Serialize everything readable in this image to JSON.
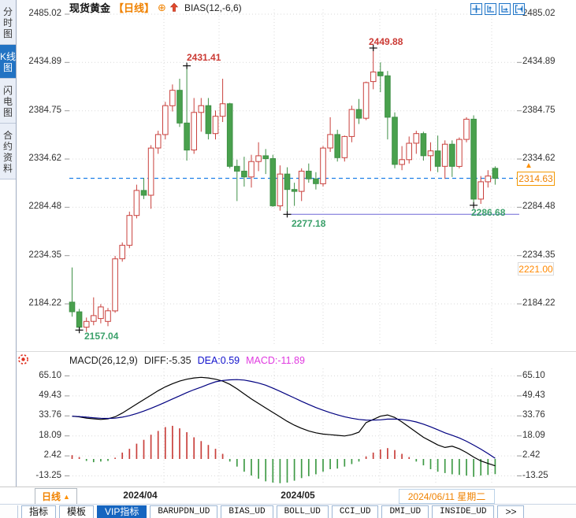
{
  "header": {
    "symbol": "现货黄金",
    "period_tag": "【日线】",
    "indicator_label": "BIAS(12,-6,6)"
  },
  "icons": {
    "circle_plus": "⊕",
    "up_triangle": "▲"
  },
  "sidebar": {
    "items": [
      {
        "label": "分时图",
        "selected": false
      },
      {
        "label": "K线图",
        "selected": true
      },
      {
        "label": "闪电图",
        "selected": false
      },
      {
        "label": "合约资料",
        "selected": false
      }
    ]
  },
  "colors": {
    "up": "#c9403c",
    "down": "#49a14d",
    "down_stroke": "#3f9046",
    "accent_orange": "#f08200",
    "current_line": "#1f7fe8",
    "support_line": "#9490e0",
    "dif_line": "#000000",
    "dea_line": "#000080",
    "hist_up": "#c9403c",
    "hist_down": "#3f9a46",
    "grid": "#d9d9d9",
    "tick": "#999999",
    "selected_blue": "#1565c0"
  },
  "macd_header": {
    "formula": "MACD(26,12,9)",
    "diff": "DIFF:-5.35",
    "dea": "DEA:0.59",
    "macd": "MACD:-11.89"
  },
  "bottom_bar": {
    "period_button": "日线"
  },
  "bottom_tabs": [
    {
      "label": "指标",
      "selected": false,
      "mono": false
    },
    {
      "label": "模板",
      "selected": false,
      "mono": false
    },
    {
      "label": "VIP指标",
      "selected": true,
      "mono": false
    },
    {
      "label": "BARUPDN_UD",
      "selected": false,
      "mono": true
    },
    {
      "label": "BIAS_UD",
      "selected": false,
      "mono": true
    },
    {
      "label": "BOLL_UD",
      "selected": false,
      "mono": true
    },
    {
      "label": "CCI_UD",
      "selected": false,
      "mono": true
    },
    {
      "label": "DMI_UD",
      "selected": false,
      "mono": true
    },
    {
      "label": "INSIDE_UD",
      "selected": false,
      "mono": true
    },
    {
      "label": ">>",
      "selected": false,
      "mono": false
    }
  ],
  "chart_data": [
    {
      "type": "candlestick",
      "title": "现货黄金 日线",
      "style": "chinese-convention-up-red-hollow-down-green-solid",
      "axis_range": [
        2184.22,
        2485.02
      ],
      "y_ticks": [
        2485.02,
        2434.89,
        2384.75,
        2334.62,
        2284.48,
        2234.35,
        2184.22
      ],
      "y_tick_labels": [
        "2485.02",
        "2434.89",
        "2384.75",
        "2334.62",
        "2284.48",
        "2234.35",
        "2184.22"
      ],
      "x_labels": [
        "2024/04",
        "2024/05",
        "2024/06/11 星期二"
      ],
      "current_price": 2314.63,
      "current_price_label": "2314.63",
      "alert_price": 2221.0,
      "alert_price_label": "2221.00",
      "support_line": {
        "price": 2277.18,
        "from_candle": 30
      },
      "annotations": [
        {
          "text": "2431.41",
          "candle": 16,
          "at": "high",
          "color": "#cb3a34"
        },
        {
          "text": "2449.88",
          "candle": 42,
          "at": "high",
          "color": "#cb3a34"
        },
        {
          "text": "2157.04",
          "candle": 1,
          "at": "low",
          "color": "#3aa06a"
        },
        {
          "text": "2277.18",
          "candle": 30,
          "at": "low",
          "color": "#3aa06a"
        },
        {
          "text": "2286.68",
          "candle": 56,
          "at": "low",
          "color": "#3aa06a"
        }
      ],
      "candles": [
        [
          2186,
          2222,
          2171,
          2176
        ],
        [
          2176,
          2179,
          2157.04,
          2160
        ],
        [
          2160,
          2170,
          2155,
          2166
        ],
        [
          2166,
          2191,
          2162,
          2172
        ],
        [
          2169,
          2184,
          2164,
          2181
        ],
        [
          2166,
          2180,
          2161,
          2177
        ],
        [
          2177,
          2234,
          2175,
          2231
        ],
        [
          2231,
          2248,
          2228,
          2245
        ],
        [
          2245,
          2280,
          2242,
          2276
        ],
        [
          2276,
          2308,
          2273,
          2302
        ],
        [
          2302,
          2315,
          2293,
          2297
        ],
        [
          2297,
          2349,
          2283,
          2346
        ],
        [
          2346,
          2364,
          2340,
          2360
        ],
        [
          2360,
          2394,
          2355,
          2390
        ],
        [
          2390,
          2412,
          2384,
          2406
        ],
        [
          2406,
          2418,
          2368,
          2372
        ],
        [
          2372,
          2431.41,
          2333,
          2344
        ],
        [
          2344,
          2398,
          2340,
          2383
        ],
        [
          2383,
          2398,
          2363,
          2390
        ],
        [
          2390,
          2398,
          2355,
          2361
        ],
        [
          2361,
          2385,
          2355,
          2379
        ],
        [
          2379,
          2418,
          2373,
          2392
        ],
        [
          2392,
          2393,
          2325,
          2327
        ],
        [
          2327,
          2334,
          2291,
          2322
        ],
        [
          2322,
          2337,
          2306,
          2316
        ],
        [
          2316,
          2339,
          2305,
          2332
        ],
        [
          2332,
          2352,
          2322,
          2338
        ],
        [
          2338,
          2345,
          2319,
          2335
        ],
        [
          2335,
          2339,
          2285,
          2286
        ],
        [
          2286,
          2328,
          2281,
          2319
        ],
        [
          2319,
          2326,
          2277.18,
          2303
        ],
        [
          2303,
          2310,
          2286,
          2301
        ],
        [
          2301,
          2325,
          2291,
          2322
        ],
        [
          2322,
          2330,
          2310,
          2314
        ],
        [
          2314,
          2321,
          2303,
          2309
        ],
        [
          2309,
          2348,
          2306,
          2346
        ],
        [
          2346,
          2378,
          2342,
          2360
        ],
        [
          2360,
          2365,
          2332,
          2336
        ],
        [
          2336,
          2359,
          2332,
          2358
        ],
        [
          2358,
          2390,
          2352,
          2386
        ],
        [
          2386,
          2397,
          2371,
          2377
        ],
        [
          2377,
          2415,
          2375,
          2414
        ],
        [
          2415,
          2449.88,
          2407,
          2425
        ],
        [
          2425,
          2435,
          2404,
          2421
        ],
        [
          2421,
          2426,
          2355,
          2378
        ],
        [
          2378,
          2383,
          2325,
          2329
        ],
        [
          2329,
          2348,
          2323,
          2334
        ],
        [
          2334,
          2358,
          2330,
          2351
        ],
        [
          2351,
          2364,
          2340,
          2361
        ],
        [
          2361,
          2363,
          2333,
          2338
        ],
        [
          2338,
          2352,
          2322,
          2343
        ],
        [
          2343,
          2359,
          2321,
          2327
        ],
        [
          2327,
          2354,
          2314,
          2350
        ],
        [
          2350,
          2354,
          2316,
          2327
        ],
        [
          2327,
          2357,
          2325,
          2355
        ],
        [
          2355,
          2378,
          2352,
          2376
        ],
        [
          2376,
          2380,
          2286.68,
          2293
        ],
        [
          2293,
          2317,
          2288,
          2311
        ],
        [
          2311,
          2323,
          2305,
          2317
        ],
        [
          2325,
          2327,
          2308,
          2314.63
        ]
      ]
    },
    {
      "type": "bar+line",
      "title": "MACD(26,12,9)",
      "y_ticks": [
        65.1,
        49.43,
        33.76,
        18.09,
        2.42,
        -13.25
      ],
      "y_tick_labels": [
        "65.10",
        "49.43",
        "33.76",
        "18.09",
        "2.42",
        "-13.25"
      ],
      "series": [
        {
          "name": "DIF",
          "type": "line",
          "color": "#000000",
          "values": [
            33.5,
            33,
            32,
            31.5,
            31,
            31.5,
            33,
            36,
            39.5,
            43,
            46.5,
            50,
            53.5,
            56.5,
            59,
            61,
            62.5,
            63.5,
            64,
            63.5,
            62.5,
            61,
            58.5,
            55,
            51,
            47,
            43.5,
            40,
            36.5,
            33,
            29.5,
            26.5,
            24,
            22,
            20.5,
            19.5,
            19,
            18.5,
            18,
            19,
            21,
            28.5,
            31,
            33.5,
            34.5,
            32.5,
            29,
            25,
            21,
            17,
            14,
            11,
            9,
            10,
            8,
            5,
            1.5,
            -1.5,
            -3.5,
            -5.35
          ]
        },
        {
          "name": "DEA",
          "type": "line",
          "color": "#000080",
          "values": [
            33.5,
            33.2,
            32.8,
            32.3,
            31.9,
            31.8,
            32,
            32.8,
            34,
            35.6,
            37.5,
            39.7,
            42,
            44.5,
            47,
            49.5,
            52,
            54.3,
            56.3,
            58.5,
            60.5,
            61.5,
            62,
            62.2,
            61.8,
            60.8,
            59.5,
            57.8,
            55.5,
            53,
            50.4,
            47.8,
            45.2,
            42.7,
            40.3,
            38.2,
            36.3,
            34.6,
            33.1,
            31.9,
            31,
            30.5,
            30.4,
            30.7,
            31.2,
            31.3,
            31,
            30.2,
            29,
            27.3,
            25.2,
            22.9,
            20.5,
            18.6,
            16.5,
            13.9,
            10.9,
            7.7,
            4.3,
            0.59
          ]
        },
        {
          "name": "MACD",
          "type": "bar",
          "color_pos": "#c9403c",
          "color_neg": "#3f9a46",
          "values": [
            3,
            1.5,
            -1.5,
            -2.5,
            -2,
            -1.5,
            1,
            5,
            8,
            12,
            15,
            19,
            22,
            25,
            26,
            24,
            21,
            17,
            14,
            11,
            8,
            4,
            -2,
            -6,
            -10,
            -13,
            -15.5,
            -17.5,
            -18.5,
            -19,
            -18.5,
            -17,
            -15,
            -13.5,
            -12,
            -10,
            -8,
            -7.5,
            -6,
            -4,
            -2,
            2,
            5,
            7.5,
            8.5,
            7,
            4,
            1.5,
            -2,
            -5,
            -8,
            -10,
            -11,
            -12,
            -12.5,
            -13,
            -14,
            -13,
            -12.5,
            -11.89
          ]
        }
      ]
    }
  ]
}
